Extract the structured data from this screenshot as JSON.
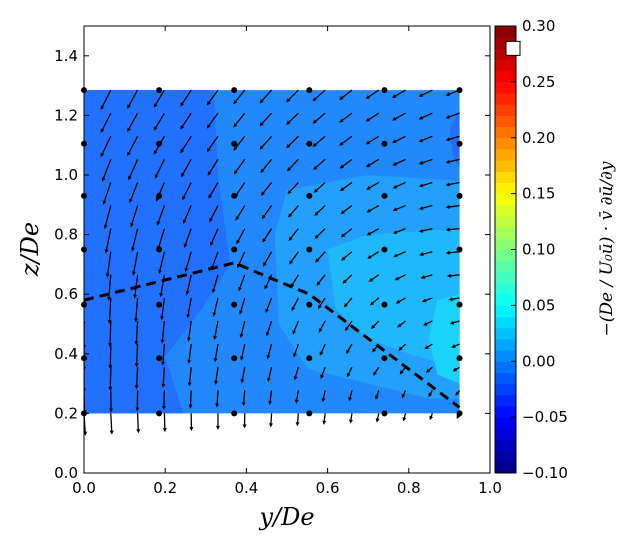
{
  "chart_data": {
    "type": "contour-quiver",
    "xlabel": "y/De",
    "ylabel": "z/De",
    "colorbar_label": "−(De / U₀ū) · v̄ ∂ū/∂y",
    "xlim": [
      0,
      1.0
    ],
    "ylim": [
      0,
      1.5
    ],
    "xticks": [
      "0.0",
      "0.2",
      "0.4",
      "0.6",
      "0.8",
      "1.0"
    ],
    "yticks": [
      "0.0",
      "0.2",
      "0.4",
      "0.6",
      "0.8",
      "1.0",
      "1.2",
      "1.4"
    ],
    "colorbar": {
      "range": [
        -0.1,
        0.3
      ],
      "colormap": "jet",
      "ticks": [
        "−0.10",
        "−0.05",
        "0.00",
        "0.05",
        "0.10",
        "0.15",
        "0.20",
        "0.25",
        "0.30"
      ],
      "marker_value": 0.28
    },
    "contour_extent": {
      "x": [
        0,
        0.925
      ],
      "z": [
        0.2,
        1.285
      ]
    },
    "contour_regions": [
      {
        "level": 0.01,
        "color": "#2289fc",
        "points": [
          [
            0,
            0.2
          ],
          [
            0.925,
            0.2
          ],
          [
            0.925,
            1.285
          ],
          [
            0,
            1.285
          ]
        ]
      },
      {
        "level": -0.01,
        "color": "#2171fe",
        "points": [
          [
            0,
            0.2
          ],
          [
            0.245,
            0.2
          ],
          [
            0.2,
            0.39
          ],
          [
            0.29,
            0.55
          ],
          [
            0.36,
            0.7
          ],
          [
            0.33,
            1.0
          ],
          [
            0.32,
            1.285
          ],
          [
            0,
            1.285
          ]
        ]
      },
      {
        "level": -0.01,
        "color": "#2171fe",
        "points": [
          [
            0.925,
            1.22
          ],
          [
            0.9,
            1.15
          ],
          [
            0.91,
            1.05
          ],
          [
            0.925,
            1.03
          ]
        ]
      },
      {
        "level": 0.03,
        "color": "#22a0fb",
        "points": [
          [
            0.925,
            0.98
          ],
          [
            0.7,
            1.0
          ],
          [
            0.5,
            0.95
          ],
          [
            0.47,
            0.8
          ],
          [
            0.48,
            0.5
          ],
          [
            0.55,
            0.35
          ],
          [
            0.7,
            0.3
          ],
          [
            0.85,
            0.25
          ],
          [
            0.925,
            0.25
          ]
        ]
      },
      {
        "level": 0.045,
        "color": "#1fb9fb",
        "points": [
          [
            0.925,
            0.82
          ],
          [
            0.7,
            0.8
          ],
          [
            0.6,
            0.75
          ],
          [
            0.62,
            0.55
          ],
          [
            0.7,
            0.45
          ],
          [
            0.8,
            0.4
          ],
          [
            0.925,
            0.35
          ]
        ]
      },
      {
        "level": 0.06,
        "color": "#1ad3fb",
        "points": [
          [
            0.925,
            0.6
          ],
          [
            0.87,
            0.58
          ],
          [
            0.85,
            0.45
          ],
          [
            0.87,
            0.33
          ],
          [
            0.925,
            0.3
          ]
        ]
      }
    ],
    "measurement_points": {
      "x": [
        0,
        0.185,
        0.37,
        0.555,
        0.74,
        0.925
      ],
      "z": [
        0.2,
        0.385,
        0.565,
        0.75,
        0.93,
        1.105,
        1.285
      ]
    },
    "dashed_line": [
      [
        0,
        0.58
      ],
      [
        0.37,
        0.705
      ],
      [
        0.555,
        0.6
      ],
      [
        0.925,
        0.22
      ]
    ],
    "quiver": {
      "x": [
        0,
        0.066,
        0.132,
        0.198,
        0.264,
        0.33,
        0.396,
        0.462,
        0.528,
        0.594,
        0.66,
        0.726,
        0.792,
        0.858,
        0.925
      ],
      "z": [
        1.285,
        1.2075,
        1.13,
        1.0525,
        0.975,
        0.8975,
        0.82,
        0.7425,
        0.665,
        0.5875,
        0.51,
        0.4325,
        0.355,
        0.2775,
        0.2
      ],
      "u": [
        [
          -0.35,
          -0.36,
          -0.37,
          -0.38,
          -0.39,
          -0.4,
          -0.41,
          -0.43,
          -0.44,
          -0.45,
          -0.46,
          -0.47,
          -0.48,
          -0.49,
          -0.5
        ],
        [
          -0.35,
          -0.36,
          -0.37,
          -0.38,
          -0.39,
          -0.4,
          -0.41,
          -0.43,
          -0.44,
          -0.45,
          -0.46,
          -0.47,
          -0.48,
          -0.49,
          -0.5
        ],
        [
          -0.35,
          -0.36,
          -0.37,
          -0.38,
          -0.39,
          -0.4,
          -0.41,
          -0.43,
          -0.44,
          -0.45,
          -0.46,
          -0.47,
          -0.48,
          -0.49,
          -0.5
        ],
        [
          -0.3,
          -0.31,
          -0.33,
          -0.34,
          -0.36,
          -0.37,
          -0.39,
          -0.4,
          -0.41,
          -0.43,
          -0.44,
          -0.46,
          -0.47,
          -0.49,
          -0.5
        ],
        [
          -0.25,
          -0.27,
          -0.29,
          -0.3,
          -0.32,
          -0.34,
          -0.36,
          -0.38,
          -0.39,
          -0.41,
          -0.43,
          -0.45,
          -0.46,
          -0.48,
          -0.5
        ],
        [
          -0.2,
          -0.22,
          -0.24,
          -0.26,
          -0.29,
          -0.31,
          -0.33,
          -0.35,
          -0.37,
          -0.39,
          -0.41,
          -0.44,
          -0.46,
          -0.48,
          -0.5
        ],
        [
          -0.15,
          -0.18,
          -0.2,
          -0.23,
          -0.25,
          -0.28,
          -0.3,
          -0.33,
          -0.35,
          -0.38,
          -0.4,
          -0.43,
          -0.45,
          -0.48,
          -0.5
        ],
        [
          -0.1,
          -0.13,
          -0.16,
          -0.19,
          -0.21,
          -0.24,
          -0.27,
          -0.3,
          -0.33,
          -0.36,
          -0.39,
          -0.41,
          -0.44,
          -0.47,
          -0.5
        ],
        [
          -0.05,
          -0.08,
          -0.11,
          -0.14,
          -0.16,
          -0.19,
          -0.22,
          -0.25,
          -0.28,
          -0.31,
          -0.34,
          -0.36,
          -0.39,
          -0.42,
          -0.45
        ],
        [
          -0.02,
          -0.05,
          -0.07,
          -0.1,
          -0.13,
          -0.16,
          -0.18,
          -0.21,
          -0.24,
          -0.26,
          -0.29,
          -0.32,
          -0.35,
          -0.37,
          -0.4
        ],
        [
          0,
          -0.03,
          -0.05,
          -0.08,
          -0.1,
          -0.13,
          -0.15,
          -0.18,
          -0.2,
          -0.23,
          -0.25,
          -0.28,
          -0.3,
          -0.33,
          -0.35
        ],
        [
          0,
          -0.02,
          -0.04,
          -0.06,
          -0.09,
          -0.11,
          -0.13,
          -0.15,
          -0.17,
          -0.19,
          -0.21,
          -0.24,
          -0.26,
          -0.28,
          -0.3
        ],
        [
          0,
          -0.02,
          -0.04,
          -0.05,
          -0.07,
          -0.09,
          -0.11,
          -0.13,
          -0.14,
          -0.16,
          -0.18,
          -0.2,
          -0.21,
          -0.23,
          -0.25
        ],
        [
          0.02,
          0.01,
          -0.01,
          -0.02,
          -0.03,
          -0.04,
          -0.05,
          -0.07,
          -0.08,
          -0.09,
          -0.1,
          -0.11,
          -0.13,
          -0.14,
          -0.15
        ],
        [
          0.05,
          0.04,
          0.03,
          0.02,
          0.01,
          0,
          -0.01,
          -0.03,
          -0.04,
          -0.05,
          -0.06,
          -0.07,
          -0.08,
          -0.09,
          -0.1
        ]
      ],
      "w": [
        [
          -0.75,
          -0.71,
          -0.67,
          -0.63,
          -0.59,
          -0.55,
          -0.51,
          -0.48,
          -0.44,
          -0.4,
          -0.36,
          -0.32,
          -0.28,
          -0.24,
          -0.2
        ],
        [
          -0.75,
          -0.71,
          -0.67,
          -0.63,
          -0.59,
          -0.55,
          -0.51,
          -0.47,
          -0.42,
          -0.38,
          -0.34,
          -0.3,
          -0.26,
          -0.22,
          -0.18
        ],
        [
          -0.8,
          -0.75,
          -0.71,
          -0.66,
          -0.61,
          -0.57,
          -0.52,
          -0.48,
          -0.43,
          -0.38,
          -0.34,
          -0.29,
          -0.24,
          -0.2,
          -0.15
        ],
        [
          -0.85,
          -0.8,
          -0.75,
          -0.69,
          -0.64,
          -0.59,
          -0.54,
          -0.49,
          -0.43,
          -0.38,
          -0.33,
          -0.28,
          -0.22,
          -0.17,
          -0.12
        ],
        [
          -0.85,
          -0.8,
          -0.74,
          -0.69,
          -0.64,
          -0.58,
          -0.53,
          -0.48,
          -0.42,
          -0.37,
          -0.31,
          -0.26,
          -0.21,
          -0.15,
          -0.1
        ],
        [
          -0.9,
          -0.84,
          -0.78,
          -0.72,
          -0.66,
          -0.6,
          -0.54,
          -0.49,
          -0.43,
          -0.37,
          -0.31,
          -0.25,
          -0.19,
          -0.13,
          -0.07
        ],
        [
          -0.95,
          -0.89,
          -0.82,
          -0.76,
          -0.69,
          -0.63,
          -0.56,
          -0.5,
          -0.44,
          -0.37,
          -0.31,
          -0.24,
          -0.18,
          -0.11,
          -0.05
        ],
        [
          -1.0,
          -0.93,
          -0.86,
          -0.8,
          -0.73,
          -0.66,
          -0.59,
          -0.53,
          -0.46,
          -0.39,
          -0.32,
          -0.25,
          -0.19,
          -0.12,
          -0.05
        ],
        [
          -1.0,
          -0.93,
          -0.86,
          -0.8,
          -0.73,
          -0.66,
          -0.59,
          -0.53,
          -0.46,
          -0.39,
          -0.32,
          -0.25,
          -0.19,
          -0.12,
          -0.05
        ],
        [
          -1.0,
          -0.93,
          -0.87,
          -0.8,
          -0.73,
          -0.67,
          -0.6,
          -0.54,
          -0.47,
          -0.4,
          -0.34,
          -0.27,
          -0.2,
          -0.14,
          -0.07
        ],
        [
          -1.0,
          -0.94,
          -0.87,
          -0.81,
          -0.74,
          -0.68,
          -0.61,
          -0.55,
          -0.49,
          -0.42,
          -0.36,
          -0.29,
          -0.23,
          -0.16,
          -0.1
        ],
        [
          -0.95,
          -0.89,
          -0.83,
          -0.77,
          -0.71,
          -0.65,
          -0.59,
          -0.54,
          -0.48,
          -0.42,
          -0.36,
          -0.3,
          -0.24,
          -0.18,
          -0.12
        ],
        [
          -0.9,
          -0.85,
          -0.79,
          -0.74,
          -0.69,
          -0.63,
          -0.58,
          -0.53,
          -0.47,
          -0.42,
          -0.36,
          -0.31,
          -0.26,
          -0.2,
          -0.15
        ],
        [
          -0.85,
          -0.8,
          -0.76,
          -0.71,
          -0.66,
          -0.62,
          -0.57,
          -0.53,
          -0.48,
          -0.43,
          -0.39,
          -0.34,
          -0.29,
          -0.25,
          -0.2
        ],
        [
          -0.8,
          -0.76,
          -0.71,
          -0.67,
          -0.63,
          -0.59,
          -0.54,
          -0.5,
          -0.46,
          -0.41,
          -0.37,
          -0.33,
          -0.29,
          -0.24,
          -0.2
        ]
      ]
    }
  }
}
